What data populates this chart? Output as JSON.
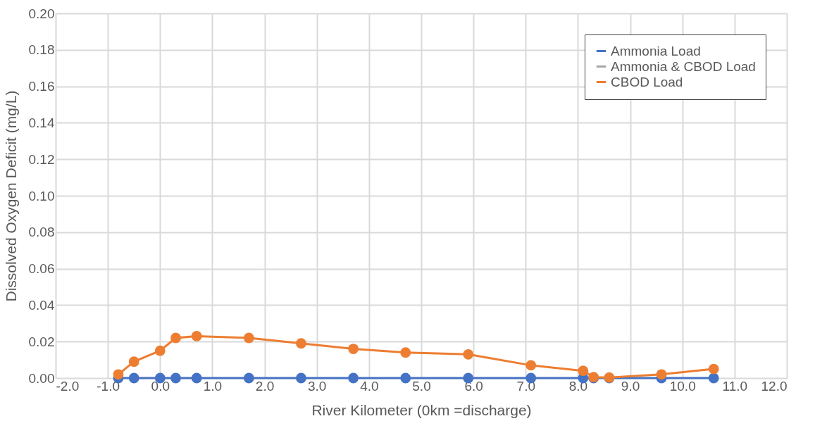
{
  "chart_data": {
    "type": "line",
    "xlabel": "River Kilometer (0km =discharge)",
    "ylabel": "Dissolved Oxygen Deficit (mg/L)",
    "x": [
      -0.8,
      -0.5,
      0.0,
      0.3,
      0.7,
      1.7,
      2.7,
      3.7,
      4.7,
      5.9,
      7.1,
      8.1,
      8.3,
      8.6,
      9.6,
      10.6
    ],
    "series": [
      {
        "name": "Ammonia Load",
        "color": "#4472c4",
        "values": [
          0,
          0,
          0,
          0,
          0,
          0,
          0,
          0,
          0,
          0,
          0,
          0,
          0,
          0,
          0,
          0
        ]
      },
      {
        "name": "Ammonia & CBOD Load",
        "color": "#a5a5a5",
        "values": [
          null,
          null,
          null,
          null,
          null,
          null,
          null,
          null,
          null,
          null,
          null,
          null,
          null,
          null,
          null,
          null
        ]
      },
      {
        "name": "CBOD Load",
        "color": "#ed7d31",
        "values": [
          0.002,
          0.009,
          0.015,
          0.022,
          0.023,
          0.022,
          0.019,
          0.016,
          0.014,
          0.013,
          0.007,
          0.004,
          0.0005,
          0.0003,
          0.002,
          0.005
        ]
      }
    ],
    "xlim": [
      -2,
      12
    ],
    "xticks": [
      {
        "value": -2,
        "label": "-2.0"
      },
      {
        "value": -1,
        "label": "-1.0"
      },
      {
        "value": 0,
        "label": "0.0"
      },
      {
        "value": 1,
        "label": "1.0"
      },
      {
        "value": 2,
        "label": "2.0"
      },
      {
        "value": 3,
        "label": "3.0"
      },
      {
        "value": 4,
        "label": "4.0"
      },
      {
        "value": 5,
        "label": "5.0"
      },
      {
        "value": 6,
        "label": "6.0"
      },
      {
        "value": 7,
        "label": "7.0"
      },
      {
        "value": 8,
        "label": "8.0"
      },
      {
        "value": 9,
        "label": "9.0"
      },
      {
        "value": 10,
        "label": "10.0"
      },
      {
        "value": 11,
        "label": "11.0"
      },
      {
        "value": 12,
        "label": "12.0"
      }
    ],
    "ylim": [
      0,
      0.2
    ],
    "yticks": [
      {
        "value": 0,
        "label": "0.00"
      },
      0.02,
      0.04,
      0.06,
      0.08,
      {
        "value": 0.1,
        "label": "0.10"
      },
      0.12,
      0.14,
      0.16,
      0.18,
      {
        "value": 0.2,
        "label": "0.20"
      }
    ],
    "grid": true,
    "legend": "top right",
    "marker": "circle",
    "line_style": "solid"
  }
}
